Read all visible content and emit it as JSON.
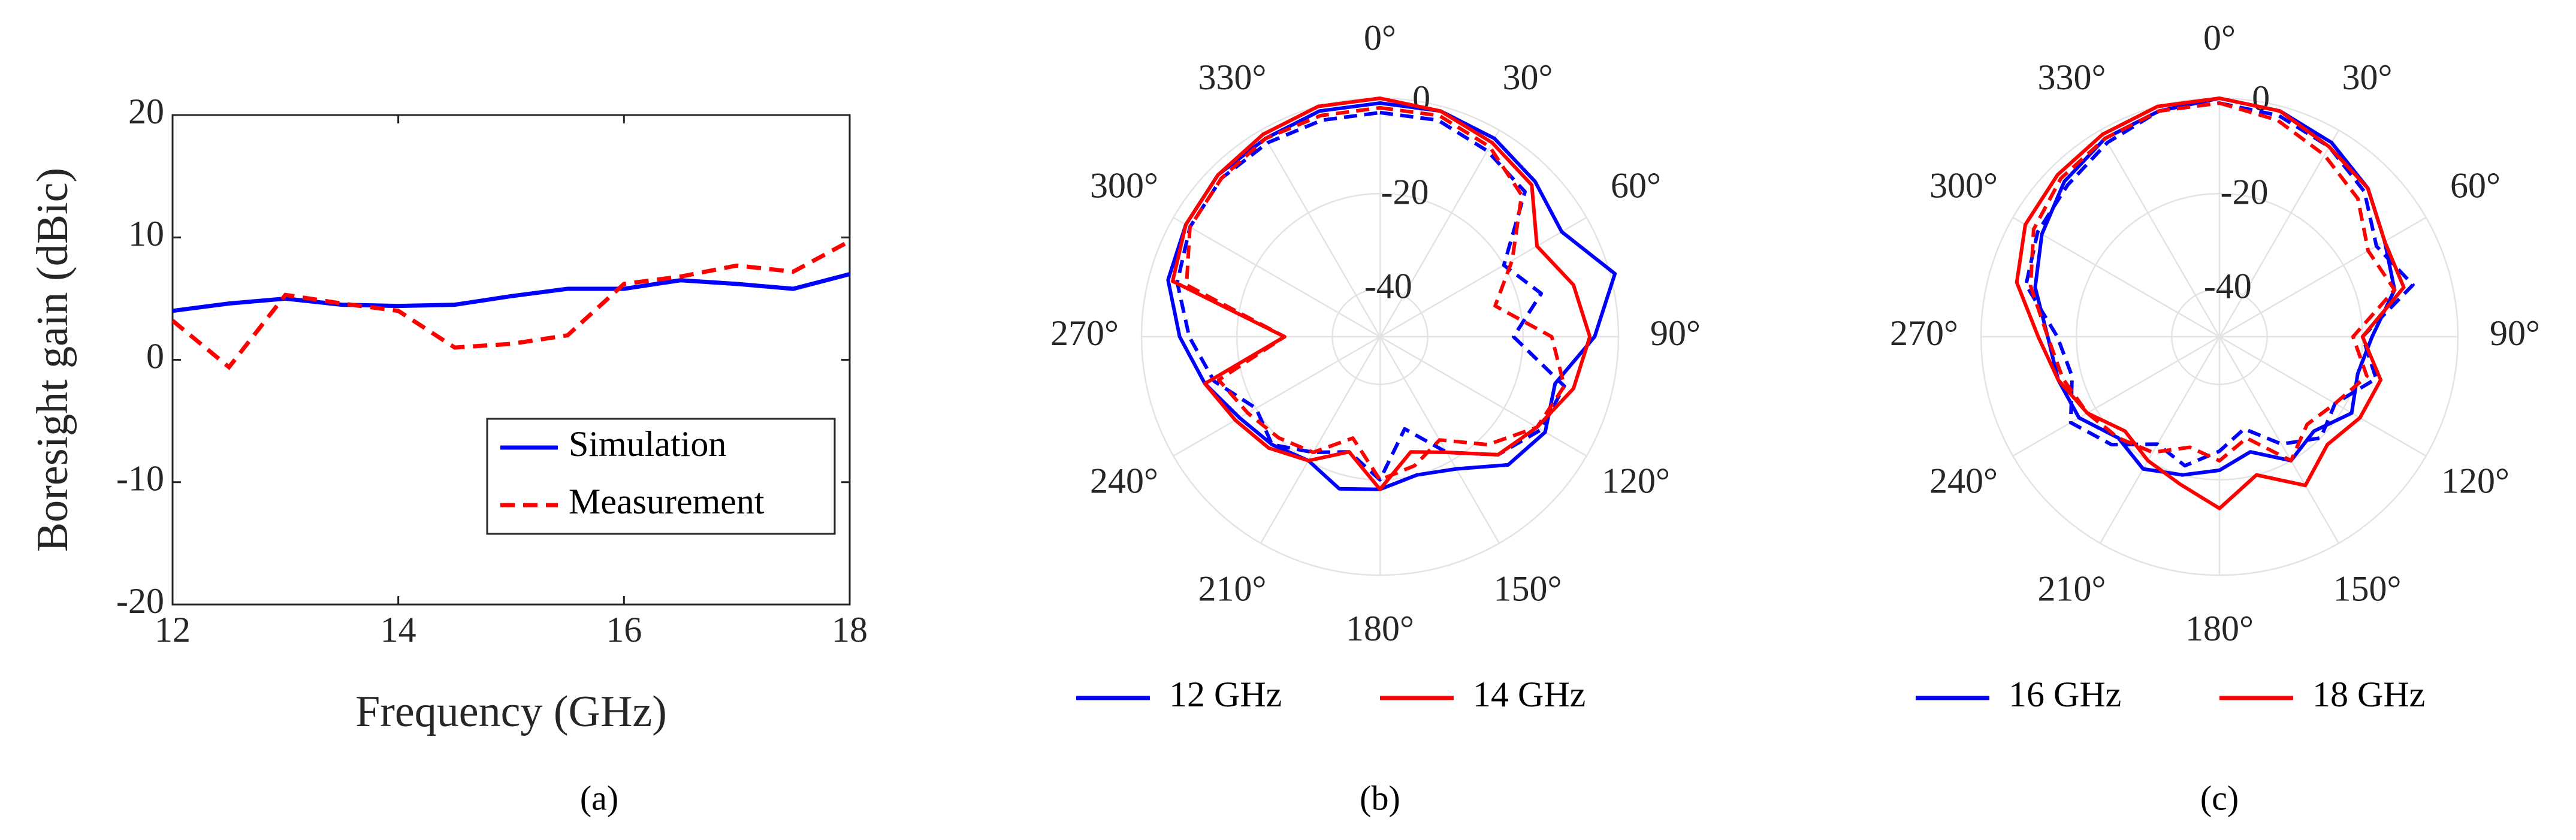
{
  "chart_data": [
    {
      "type": "line",
      "caption": "(a)",
      "xlabel": "Frequency (GHz)",
      "ylabel": "Boresight gain (dBic)",
      "x": [
        12,
        12.5,
        13,
        13.5,
        14,
        14.5,
        15,
        15.5,
        16,
        16.5,
        17,
        17.5,
        18
      ],
      "series": [
        {
          "name": "Simulation",
          "color": "#0000ff",
          "dash": false,
          "values": [
            4,
            4.6,
            5,
            4.5,
            4.4,
            4.5,
            5.2,
            5.8,
            5.8,
            6.5,
            6.2,
            5.8,
            7
          ]
        },
        {
          "name": "Measurement",
          "color": "#ff0000",
          "dash": true,
          "values": [
            3.2,
            -0.6,
            5.3,
            4.6,
            4,
            1,
            1.3,
            2,
            6.2,
            6.8,
            7.7,
            7.2,
            9.7
          ]
        }
      ],
      "xlim": [
        12,
        18
      ],
      "xticks": [
        12,
        14,
        16,
        18
      ],
      "ylim": [
        -20,
        20
      ],
      "yticks": [
        -20,
        -10,
        0,
        10,
        20
      ],
      "legend": "lower right"
    },
    {
      "type": "polar",
      "caption": "(b)",
      "theta": [
        0,
        15,
        30,
        45,
        60,
        75,
        90,
        105,
        120,
        135,
        150,
        165,
        180,
        195,
        210,
        225,
        240,
        255,
        270,
        285,
        300,
        315,
        330,
        345
      ],
      "series": [
        {
          "name": "12 GHz",
          "color": "#0000ff",
          "dash": false,
          "values": [
            -1,
            -1,
            -2,
            -4,
            -6,
            1,
            -5,
            -12,
            -10,
            -12,
            -18,
            -20,
            -18,
            -17,
            -20,
            -18,
            -16,
            -12,
            -8,
            -4,
            -3,
            -2,
            -2,
            -1
          ]
        },
        {
          "color": "#0000ff",
          "dash": true,
          "values": [
            -3,
            -3,
            -5,
            -7,
            -20,
            -15,
            -22,
            -10,
            -11,
            -15,
            -22,
            -30,
            -20,
            -25,
            -22,
            -18,
            -20,
            -14,
            -10,
            -6,
            -4,
            -3,
            -3,
            -3
          ]
        },
        {
          "name": "14 GHz",
          "color": "#ff0000",
          "dash": false,
          "values": [
            0,
            -1,
            -3,
            -5,
            -12,
            -8,
            -6,
            -8,
            -12,
            -15,
            -22,
            -25,
            -18,
            -25,
            -20,
            -17,
            -15,
            -12,
            -30,
            -5,
            -3,
            -2,
            -1,
            0
          ]
        },
        {
          "color": "#ff0000",
          "dash": true,
          "values": [
            -2,
            -2,
            -4,
            -8,
            -18,
            -25,
            -14,
            -10,
            -12,
            -18,
            -25,
            -22,
            -20,
            -28,
            -22,
            -20,
            -18,
            -15,
            -30,
            -8,
            -4,
            -3,
            -2,
            -2
          ]
        }
      ],
      "rlim": [
        -50,
        0
      ],
      "rticks": [
        -40,
        -20,
        0
      ],
      "thetaticks": [
        {
          "value": 0,
          "label": "0°"
        },
        {
          "value": 30,
          "label": "30°"
        },
        {
          "value": 60,
          "label": "60°"
        },
        {
          "value": 90,
          "label": "90°"
        },
        {
          "value": 120,
          "label": "120°"
        },
        {
          "value": 150,
          "label": "150°"
        },
        {
          "value": 180,
          "label": "180°"
        },
        {
          "value": 210,
          "label": "210°"
        },
        {
          "value": 240,
          "label": "240°"
        },
        {
          "value": 270,
          "label": "270°"
        },
        {
          "value": 300,
          "label": "300°"
        },
        {
          "value": 330,
          "label": "330°"
        }
      ],
      "grid": true,
      "legend": "below"
    },
    {
      "type": "polar",
      "caption": "(c)",
      "theta": [
        0,
        15,
        30,
        45,
        60,
        75,
        90,
        105,
        120,
        135,
        150,
        165,
        180,
        195,
        210,
        225,
        240,
        255,
        270,
        285,
        300,
        315,
        330,
        345
      ],
      "series": [
        {
          "name": "16 GHz",
          "color": "#0000ff",
          "dash": false,
          "values": [
            0,
            -1,
            -3,
            -6,
            -10,
            -12,
            -18,
            -20,
            -18,
            -22,
            -20,
            -25,
            -22,
            -20,
            -18,
            -20,
            -16,
            -15,
            -14,
            -10,
            -7,
            -4,
            -2,
            -1
          ]
        },
        {
          "color": "#0000ff",
          "dash": true,
          "values": [
            -1,
            -2,
            -4,
            -7,
            -12,
            -8,
            -20,
            -16,
            -22,
            -20,
            -24,
            -30,
            -26,
            -22,
            -24,
            -18,
            -14,
            -18,
            -16,
            -8,
            -6,
            -5,
            -3,
            -1
          ]
        },
        {
          "name": "18 GHz",
          "color": "#ff0000",
          "dash": false,
          "values": [
            0,
            -1,
            -4,
            -6,
            -10,
            -10,
            -20,
            -15,
            -16,
            -18,
            -14,
            -20,
            -14,
            -18,
            -20,
            -22,
            -18,
            -15,
            -12,
            -6,
            -3,
            -2,
            -1,
            0
          ]
        },
        {
          "color": "#ff0000",
          "dash": true,
          "values": [
            -1,
            -3,
            -6,
            -9,
            -14,
            -12,
            -22,
            -18,
            -22,
            -24,
            -20,
            -28,
            -24,
            -26,
            -22,
            -20,
            -18,
            -16,
            -14,
            -9,
            -5,
            -3,
            -2,
            -1
          ]
        }
      ],
      "rlim": [
        -50,
        0
      ],
      "rticks": [
        -40,
        -20,
        0
      ],
      "thetaticks": [
        {
          "value": 0,
          "label": "0°"
        },
        {
          "value": 30,
          "label": "30°"
        },
        {
          "value": 60,
          "label": "60°"
        },
        {
          "value": 90,
          "label": "90°"
        },
        {
          "value": 120,
          "label": "120°"
        },
        {
          "value": 150,
          "label": "150°"
        },
        {
          "value": 180,
          "label": "180°"
        },
        {
          "value": 210,
          "label": "210°"
        },
        {
          "value": 240,
          "label": "240°"
        },
        {
          "value": 270,
          "label": "270°"
        },
        {
          "value": 300,
          "label": "300°"
        },
        {
          "value": 330,
          "label": "330°"
        }
      ],
      "grid": true,
      "legend": "below"
    }
  ]
}
